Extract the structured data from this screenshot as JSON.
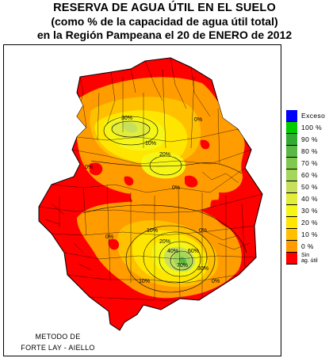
{
  "title": {
    "line1": "RESERVA DE AGUA ÚTIL EN EL SUELO",
    "line2": "(como % de la capacidad de agua útil total)",
    "line3": "en la Región Pampeana el 20 de ENERO de 2012"
  },
  "legend": {
    "items": [
      {
        "label": "Exceso",
        "color": "#0000ff"
      },
      {
        "label": "100 %",
        "color": "#00cc00"
      },
      {
        "label": "90 %",
        "color": "#33aa33"
      },
      {
        "label": "80 %",
        "color": "#5ab946"
      },
      {
        "label": "70 %",
        "color": "#7fc94f"
      },
      {
        "label": "60 %",
        "color": "#a3d65a"
      },
      {
        "label": "50 %",
        "color": "#c6e05e"
      },
      {
        "label": "40 %",
        "color": "#e2ec3a"
      },
      {
        "label": "30 %",
        "color": "#f5f516"
      },
      {
        "label": "20 %",
        "color": "#ffe600"
      },
      {
        "label": "10 %",
        "color": "#ffc000"
      },
      {
        "label": "0 %",
        "color": "#ff9c00"
      },
      {
        "label": "Sin ag. útil",
        "label_line1": "Sin",
        "label_line2": "ag. útil",
        "color": "#ff0000"
      }
    ]
  },
  "method": {
    "line1": "METODO DE",
    "line2": "FORTE LAY - AIELLO"
  },
  "contour_labels": [
    "0%",
    "10%",
    "20%",
    "30%",
    "40%",
    "50%",
    "60%",
    "70%"
  ]
}
